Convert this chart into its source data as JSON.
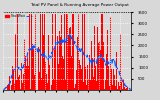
{
  "title": "Total PV Panel & Running Average Power Output",
  "bg_color": "#d8d8d8",
  "plot_bg": "#d8d8d8",
  "bar_color": "#ff0000",
  "avg_color": "#0055ff",
  "grid_color": "#ffffff",
  "ylim": [
    0,
    3500
  ],
  "yticks": [
    500,
    1000,
    1500,
    2000,
    2500,
    3000,
    3500
  ],
  "n_bars": 365,
  "legend_label1": "Total Watt",
  "legend_label2": "---"
}
